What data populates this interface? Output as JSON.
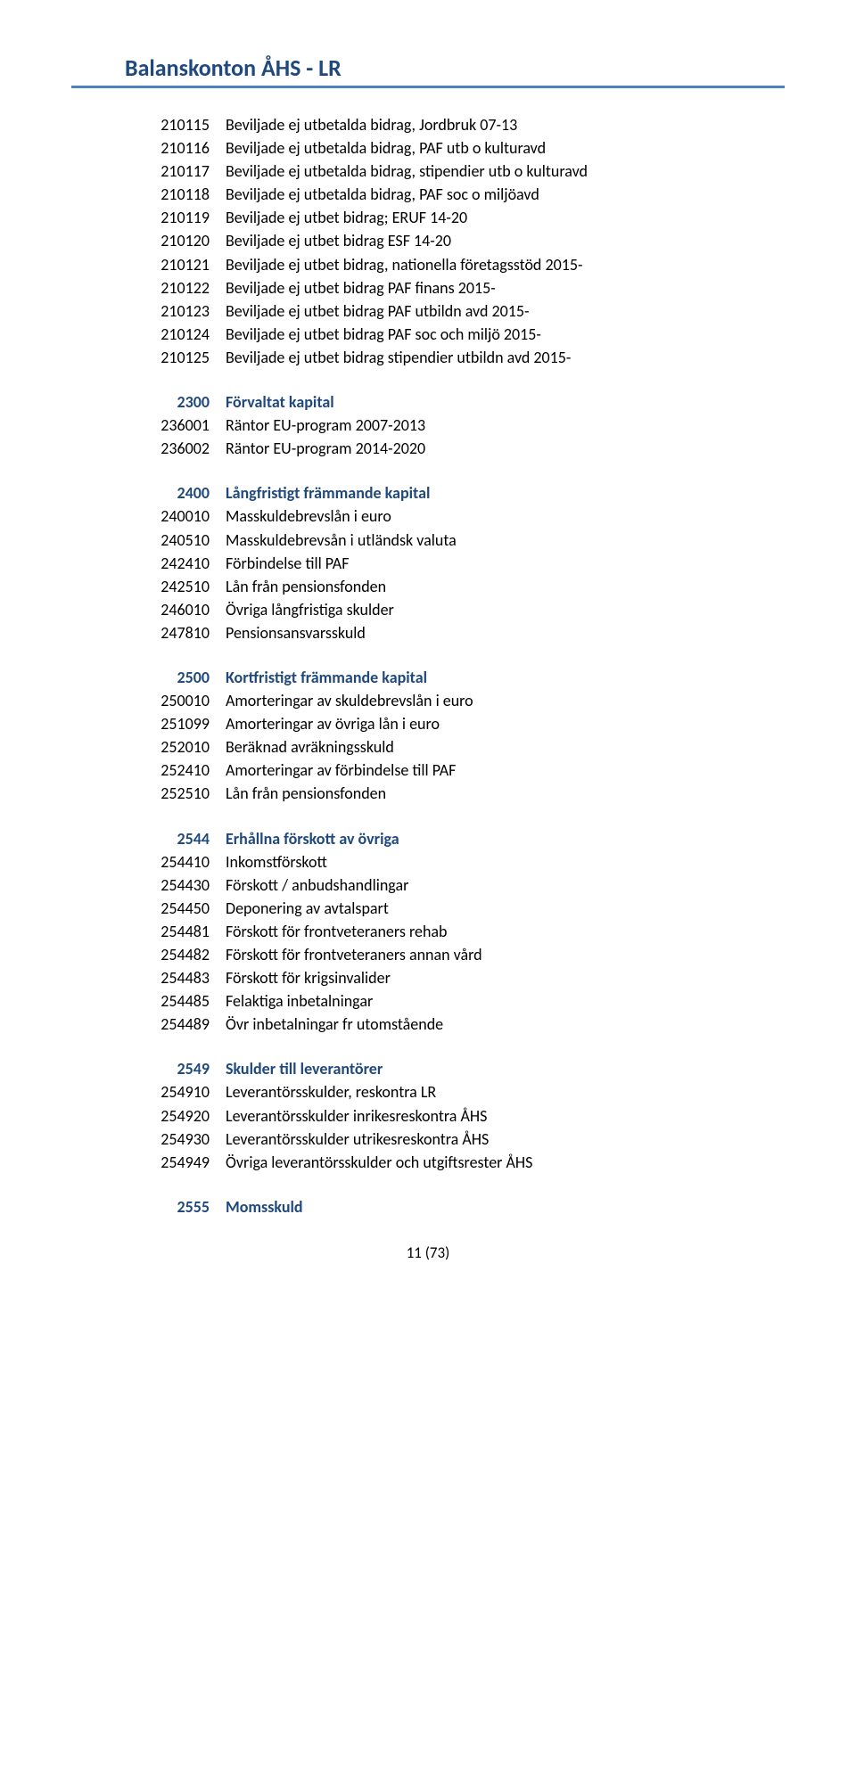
{
  "title": "Balanskonton  ÅHS - LR",
  "footer": "11 (73)",
  "colors": {
    "heading": "#1f497d",
    "border": "#4f81bd",
    "text": "#000000",
    "background": "#ffffff"
  },
  "typography": {
    "title_fontsize": 26,
    "body_fontsize": 18,
    "footer_fontsize": 17,
    "font_family": "Calibri"
  },
  "sections": [
    {
      "header": null,
      "rows": [
        {
          "code": "210115",
          "desc": "Beviljade ej utbetalda bidrag, Jordbruk 07-13"
        },
        {
          "code": "210116",
          "desc": "Beviljade ej utbetalda bidrag, PAF utb o kulturavd"
        },
        {
          "code": "210117",
          "desc": "Beviljade ej utbetalda bidrag, stipendier utb o kulturavd"
        },
        {
          "code": "210118",
          "desc": "Beviljade ej utbetalda bidrag, PAF soc o miljöavd"
        },
        {
          "code": "210119",
          "desc": "Beviljade ej utbet bidrag; ERUF 14-20"
        },
        {
          "code": "210120",
          "desc": "Beviljade ej utbet bidrag ESF 14-20"
        },
        {
          "code": "210121",
          "desc": "Beviljade ej utbet bidrag, nationella företagsstöd 2015-"
        },
        {
          "code": "210122",
          "desc": "Beviljade ej utbet bidrag PAF finans 2015-"
        },
        {
          "code": "210123",
          "desc": "Beviljade ej utbet bidrag PAF utbildn avd 2015-"
        },
        {
          "code": "210124",
          "desc": "Beviljade ej utbet bidrag PAF soc och miljö 2015-"
        },
        {
          "code": "210125",
          "desc": "Beviljade ej utbet bidrag stipendier utbildn avd 2015-"
        }
      ]
    },
    {
      "header": {
        "code": "2300",
        "desc": "Förvaltat kapital"
      },
      "rows": [
        {
          "code": "236001",
          "desc": "Räntor EU-program 2007-2013"
        },
        {
          "code": "236002",
          "desc": "Räntor EU-program 2014-2020"
        }
      ]
    },
    {
      "header": {
        "code": "2400",
        "desc": "Långfristigt främmande kapital"
      },
      "rows": [
        {
          "code": "240010",
          "desc": "Masskuldebrevslån i euro"
        },
        {
          "code": "240510",
          "desc": "Masskuldebrevsån i utländsk valuta"
        },
        {
          "code": "242410",
          "desc": "Förbindelse till PAF"
        },
        {
          "code": "242510",
          "desc": "Lån från pensionsfonden"
        },
        {
          "code": "246010",
          "desc": "Övriga långfristiga skulder"
        },
        {
          "code": "247810",
          "desc": "Pensionsansvarsskuld"
        }
      ]
    },
    {
      "header": {
        "code": "2500",
        "desc": "Kortfristigt främmande kapital"
      },
      "rows": [
        {
          "code": "250010",
          "desc": "Amorteringar av skuldebrevslån i euro"
        },
        {
          "code": "251099",
          "desc": "Amorteringar av övriga lån i euro"
        },
        {
          "code": "252010",
          "desc": "Beräknad avräkningsskuld"
        },
        {
          "code": "252410",
          "desc": "Amorteringar av förbindelse till PAF"
        },
        {
          "code": "252510",
          "desc": "Lån från pensionsfonden"
        }
      ]
    },
    {
      "header": {
        "code": "2544",
        "desc": "Erhållna förskott av övriga"
      },
      "rows": [
        {
          "code": "254410",
          "desc": "Inkomstförskott"
        },
        {
          "code": "254430",
          "desc": "Förskott / anbudshandlingar"
        },
        {
          "code": "254450",
          "desc": "Deponering av avtalspart"
        },
        {
          "code": "254481",
          "desc": "Förskott för frontveteraners rehab"
        },
        {
          "code": "254482",
          "desc": "Förskott för frontveteraners annan vård"
        },
        {
          "code": "254483",
          "desc": "Förskott för krigsinvalider"
        },
        {
          "code": "254485",
          "desc": "Felaktiga inbetalningar"
        },
        {
          "code": "254489",
          "desc": "Övr inbetalningar fr utomstående"
        }
      ]
    },
    {
      "header": {
        "code": "2549",
        "desc": "Skulder till leverantörer"
      },
      "rows": [
        {
          "code": "254910",
          "desc": "Leverantörsskulder, reskontra LR"
        },
        {
          "code": "254920",
          "desc": "Leverantörsskulder inrikesreskontra ÅHS"
        },
        {
          "code": "254930",
          "desc": "Leverantörsskulder utrikesreskontra ÅHS"
        },
        {
          "code": "254949",
          "desc": "Övriga leverantörsskulder och utgiftsrester ÅHS"
        }
      ]
    },
    {
      "header": {
        "code": "2555",
        "desc": "Momsskuld"
      },
      "rows": []
    }
  ]
}
